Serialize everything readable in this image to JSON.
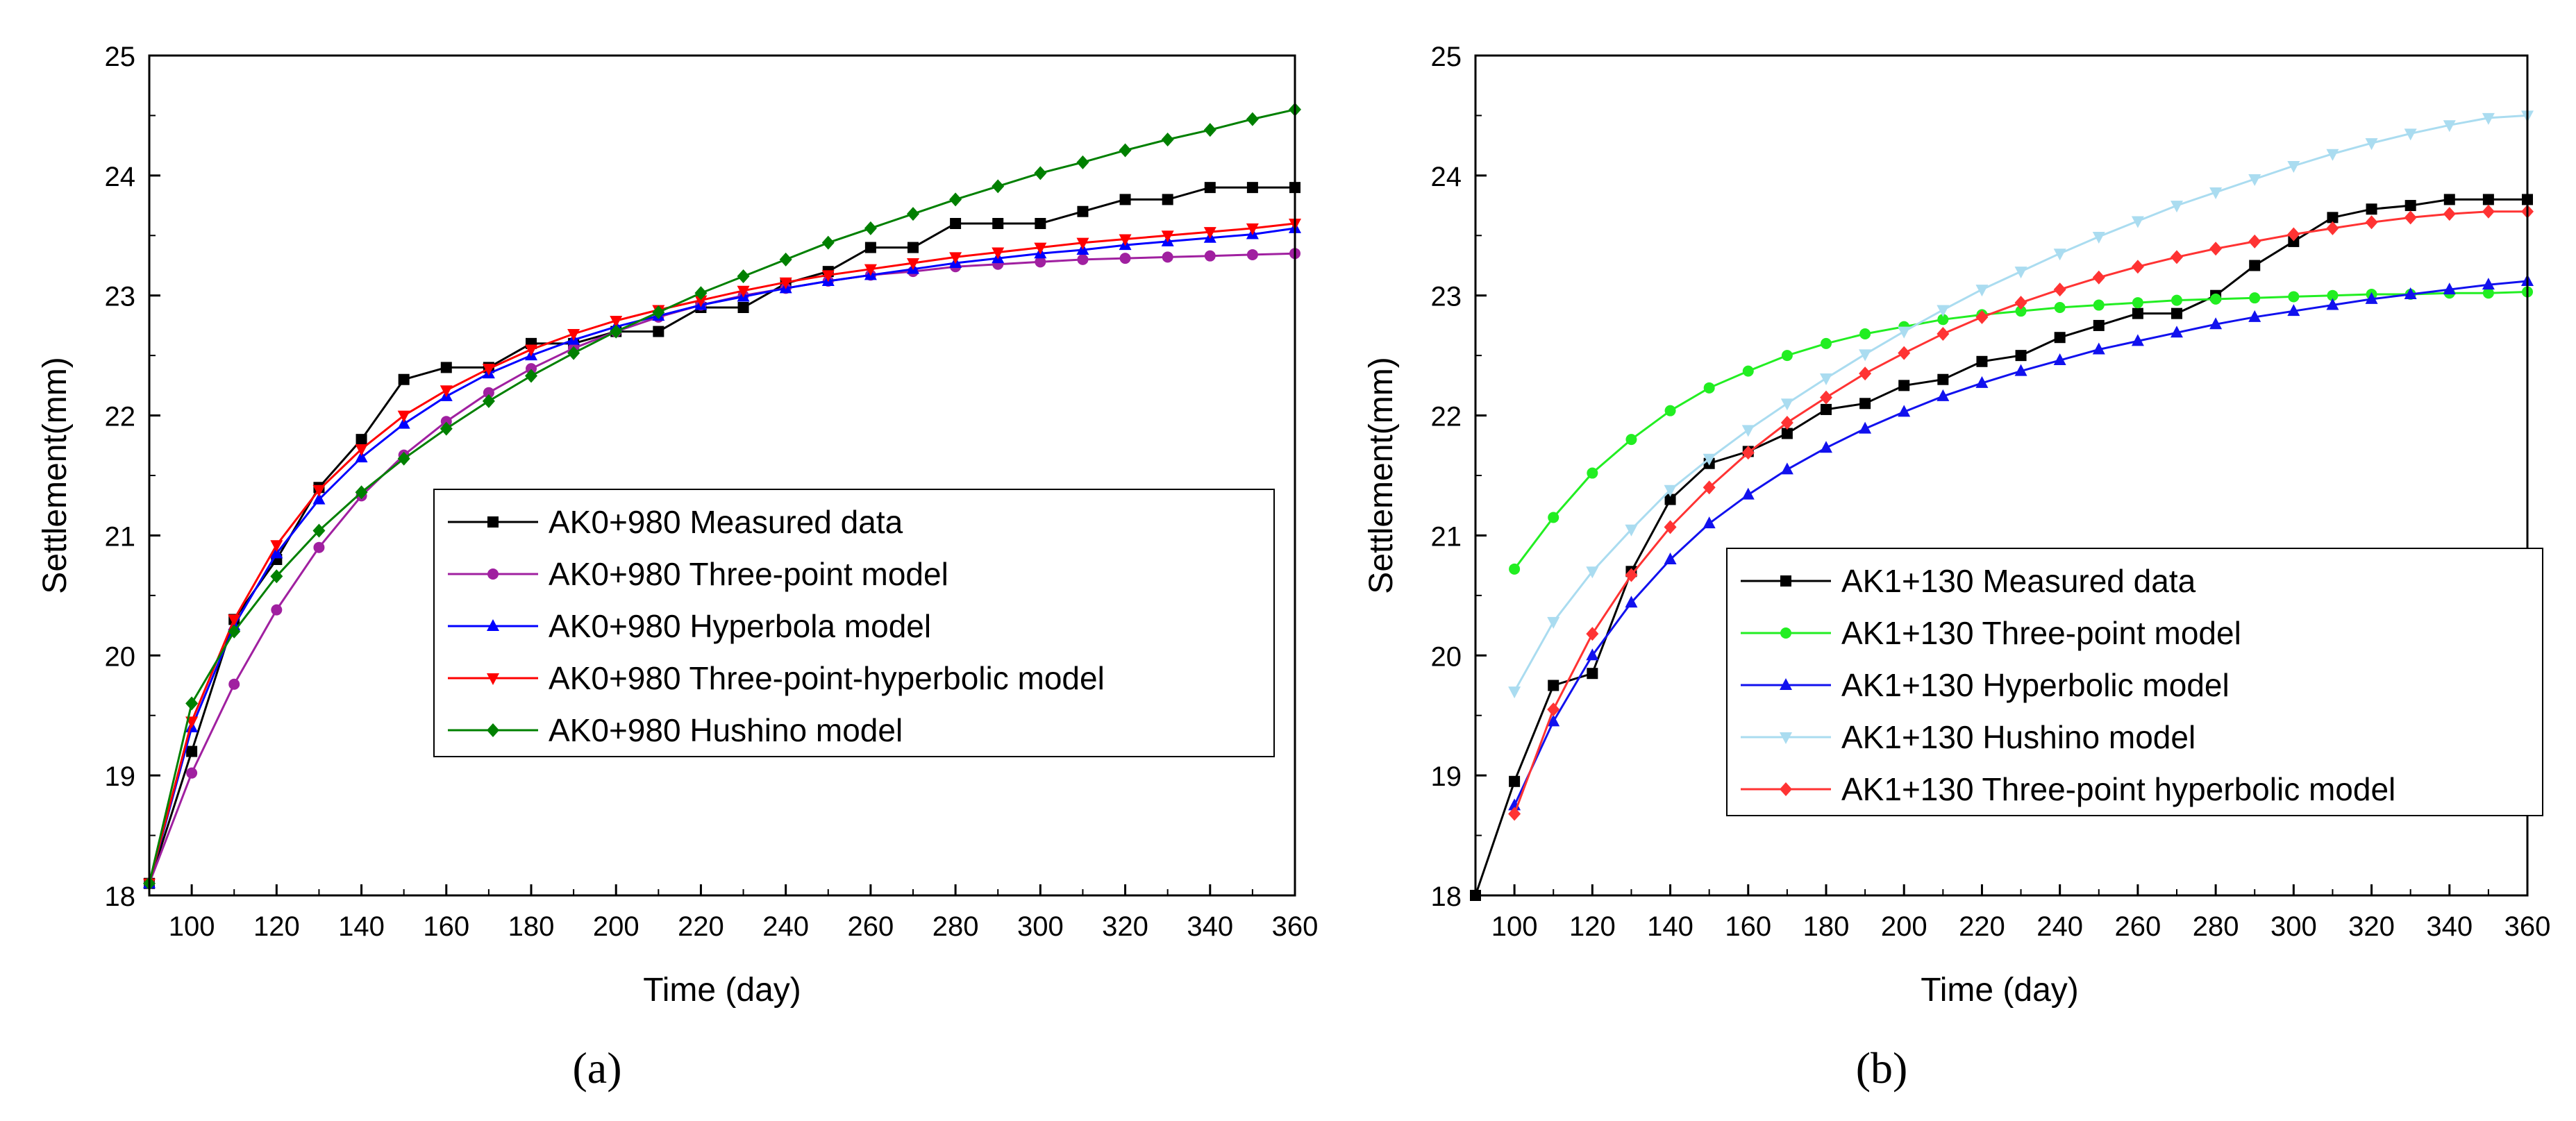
{
  "figure": {
    "panel_a_label": "(a)",
    "panel_b_label": "(b)"
  },
  "chart_data": [
    {
      "type": "line",
      "panel": "(a)",
      "title": "",
      "xlabel": "Time (day)",
      "ylabel": "Settlement(mm)",
      "xlim": [
        90,
        360
      ],
      "ylim": [
        18,
        25
      ],
      "xticks": [
        100,
        120,
        140,
        160,
        180,
        200,
        220,
        240,
        260,
        280,
        300,
        320,
        340,
        360
      ],
      "yticks": [
        18,
        19,
        20,
        21,
        22,
        23,
        24,
        25
      ],
      "grid": false,
      "legend_position": "center-right",
      "series": [
        {
          "name": "AK0+980 Measured data",
          "color": "#000000",
          "marker": "square",
          "x": [
            90,
            100,
            110,
            120,
            130,
            140,
            150,
            160,
            170,
            180,
            190,
            200,
            210,
            220,
            230,
            240,
            250,
            260,
            270,
            280,
            290,
            300,
            310,
            320,
            330,
            340,
            350,
            360
          ],
          "y": [
            18.1,
            19.2,
            20.3,
            20.8,
            21.4,
            21.8,
            22.3,
            22.4,
            22.4,
            22.6,
            22.6,
            22.7,
            22.7,
            22.9,
            22.9,
            23.1,
            23.2,
            23.4,
            23.4,
            23.6,
            23.6,
            23.6,
            23.7,
            23.8,
            23.8,
            23.9,
            23.9,
            23.9
          ]
        },
        {
          "name": "AK0+980 Three-point model",
          "color": "#a020a0",
          "marker": "circle",
          "x": [
            90,
            100,
            110,
            120,
            130,
            140,
            150,
            160,
            170,
            180,
            190,
            200,
            210,
            220,
            230,
            240,
            250,
            260,
            270,
            280,
            290,
            300,
            310,
            320,
            330,
            340,
            350,
            360
          ],
          "y": [
            18.1,
            19.02,
            19.76,
            20.38,
            20.9,
            21.33,
            21.67,
            21.95,
            22.19,
            22.39,
            22.56,
            22.7,
            22.82,
            22.92,
            23.0,
            23.06,
            23.12,
            23.17,
            23.2,
            23.24,
            23.26,
            23.28,
            23.3,
            23.31,
            23.32,
            23.33,
            23.34,
            23.35
          ]
        },
        {
          "name": "AK0+980 Hyperbola model",
          "color": "#0000ff",
          "marker": "triangle-up",
          "x": [
            90,
            100,
            110,
            120,
            130,
            140,
            150,
            160,
            170,
            180,
            190,
            200,
            210,
            220,
            230,
            240,
            250,
            260,
            270,
            280,
            290,
            300,
            310,
            320,
            330,
            340,
            350,
            360
          ],
          "y": [
            18.1,
            19.4,
            20.25,
            20.85,
            21.3,
            21.65,
            21.93,
            22.16,
            22.35,
            22.5,
            22.63,
            22.74,
            22.83,
            22.92,
            22.99,
            23.06,
            23.12,
            23.17,
            23.22,
            23.27,
            23.31,
            23.35,
            23.38,
            23.42,
            23.45,
            23.48,
            23.51,
            23.56
          ]
        },
        {
          "name": "AK0+980 Three-point-hyperbolic model",
          "color": "#ff0000",
          "marker": "triangle-down",
          "x": [
            90,
            100,
            110,
            120,
            130,
            140,
            150,
            160,
            170,
            180,
            190,
            200,
            210,
            220,
            230,
            240,
            250,
            260,
            270,
            280,
            290,
            300,
            310,
            320,
            330,
            340,
            350,
            360
          ],
          "y": [
            18.1,
            19.45,
            20.3,
            20.92,
            21.38,
            21.72,
            22.0,
            22.21,
            22.39,
            22.55,
            22.68,
            22.79,
            22.88,
            22.96,
            23.04,
            23.11,
            23.17,
            23.22,
            23.27,
            23.32,
            23.36,
            23.4,
            23.44,
            23.47,
            23.5,
            23.53,
            23.56,
            23.6
          ]
        },
        {
          "name": "AK0+980 Hushino model",
          "color": "#008000",
          "marker": "diamond",
          "x": [
            90,
            100,
            110,
            120,
            130,
            140,
            150,
            160,
            170,
            180,
            190,
            200,
            210,
            220,
            230,
            240,
            250,
            260,
            270,
            280,
            290,
            300,
            310,
            320,
            330,
            340,
            350,
            360
          ],
          "y": [
            18.1,
            19.6,
            20.2,
            20.66,
            21.04,
            21.36,
            21.64,
            21.89,
            22.12,
            22.33,
            22.52,
            22.7,
            22.86,
            23.02,
            23.16,
            23.3,
            23.44,
            23.56,
            23.68,
            23.8,
            23.91,
            24.02,
            24.11,
            24.21,
            24.3,
            24.38,
            24.47,
            24.55
          ]
        }
      ]
    },
    {
      "type": "line",
      "panel": "(b)",
      "title": "",
      "xlabel": "Time (day)",
      "ylabel": "Settlement(mm)",
      "xlim": [
        90,
        360
      ],
      "ylim": [
        18,
        25
      ],
      "xticks": [
        100,
        120,
        140,
        160,
        180,
        200,
        220,
        240,
        260,
        280,
        300,
        320,
        340,
        360
      ],
      "yticks": [
        18,
        19,
        20,
        21,
        22,
        23,
        24,
        25
      ],
      "grid": false,
      "legend_position": "center-right",
      "series": [
        {
          "name": "AK1+130 Measured data",
          "color": "#000000",
          "marker": "square",
          "x": [
            90,
            100,
            110,
            120,
            130,
            140,
            150,
            160,
            170,
            180,
            190,
            200,
            210,
            220,
            230,
            240,
            250,
            260,
            270,
            280,
            290,
            300,
            310,
            320,
            330,
            340,
            350,
            360
          ],
          "y": [
            18.0,
            18.95,
            19.75,
            19.85,
            20.7,
            21.3,
            21.6,
            21.7,
            21.85,
            22.05,
            22.1,
            22.25,
            22.3,
            22.45,
            22.5,
            22.65,
            22.75,
            22.85,
            22.85,
            23.0,
            23.25,
            23.45,
            23.65,
            23.72,
            23.75,
            23.8,
            23.8,
            23.8
          ]
        },
        {
          "name": "AK1+130 Three-point model",
          "color": "#22ee22",
          "marker": "circle",
          "x": [
            100,
            110,
            120,
            130,
            140,
            150,
            160,
            170,
            180,
            190,
            200,
            210,
            220,
            230,
            240,
            250,
            260,
            270,
            280,
            290,
            300,
            310,
            320,
            330,
            340,
            350,
            360
          ],
          "y": [
            20.72,
            21.15,
            21.52,
            21.8,
            22.04,
            22.23,
            22.37,
            22.5,
            22.6,
            22.68,
            22.74,
            22.8,
            22.84,
            22.87,
            22.9,
            22.92,
            22.94,
            22.96,
            22.97,
            22.98,
            22.99,
            23.0,
            23.01,
            23.01,
            23.02,
            23.02,
            23.03
          ]
        },
        {
          "name": "AK1+130 Hyperbolic model",
          "color": "#1111ee",
          "marker": "triangle-up",
          "x": [
            100,
            110,
            120,
            130,
            140,
            150,
            160,
            170,
            180,
            190,
            200,
            210,
            220,
            230,
            240,
            250,
            260,
            270,
            280,
            290,
            300,
            310,
            320,
            330,
            340,
            350,
            360
          ],
          "y": [
            18.75,
            19.45,
            20.0,
            20.44,
            20.8,
            21.1,
            21.34,
            21.55,
            21.73,
            21.89,
            22.03,
            22.16,
            22.27,
            22.37,
            22.46,
            22.55,
            22.62,
            22.69,
            22.76,
            22.82,
            22.87,
            22.92,
            22.97,
            23.01,
            23.05,
            23.09,
            23.12
          ]
        },
        {
          "name": "AK1+130 Hushino model",
          "color": "#aadcf0",
          "marker": "triangle-down",
          "x": [
            100,
            110,
            120,
            130,
            140,
            150,
            160,
            170,
            180,
            190,
            200,
            210,
            220,
            230,
            240,
            250,
            260,
            270,
            280,
            290,
            300,
            310,
            320,
            330,
            340,
            350,
            360
          ],
          "y": [
            19.7,
            20.28,
            20.7,
            21.05,
            21.38,
            21.64,
            21.88,
            22.1,
            22.31,
            22.51,
            22.7,
            22.88,
            23.05,
            23.2,
            23.35,
            23.49,
            23.62,
            23.75,
            23.86,
            23.97,
            24.08,
            24.18,
            24.27,
            24.35,
            24.42,
            24.48,
            24.5
          ]
        },
        {
          "name": "AK1+130 Three-point hyperbolic model",
          "color": "#ff3333",
          "marker": "diamond",
          "x": [
            100,
            110,
            120,
            130,
            140,
            150,
            160,
            170,
            180,
            190,
            200,
            210,
            220,
            230,
            240,
            250,
            260,
            270,
            280,
            290,
            300,
            310,
            320,
            330,
            340,
            350,
            360
          ],
          "y": [
            18.68,
            19.55,
            20.18,
            20.67,
            21.07,
            21.4,
            21.69,
            21.94,
            22.15,
            22.35,
            22.52,
            22.68,
            22.82,
            22.94,
            23.05,
            23.15,
            23.24,
            23.32,
            23.39,
            23.45,
            23.51,
            23.56,
            23.61,
            23.65,
            23.68,
            23.7,
            23.7
          ]
        }
      ]
    }
  ]
}
